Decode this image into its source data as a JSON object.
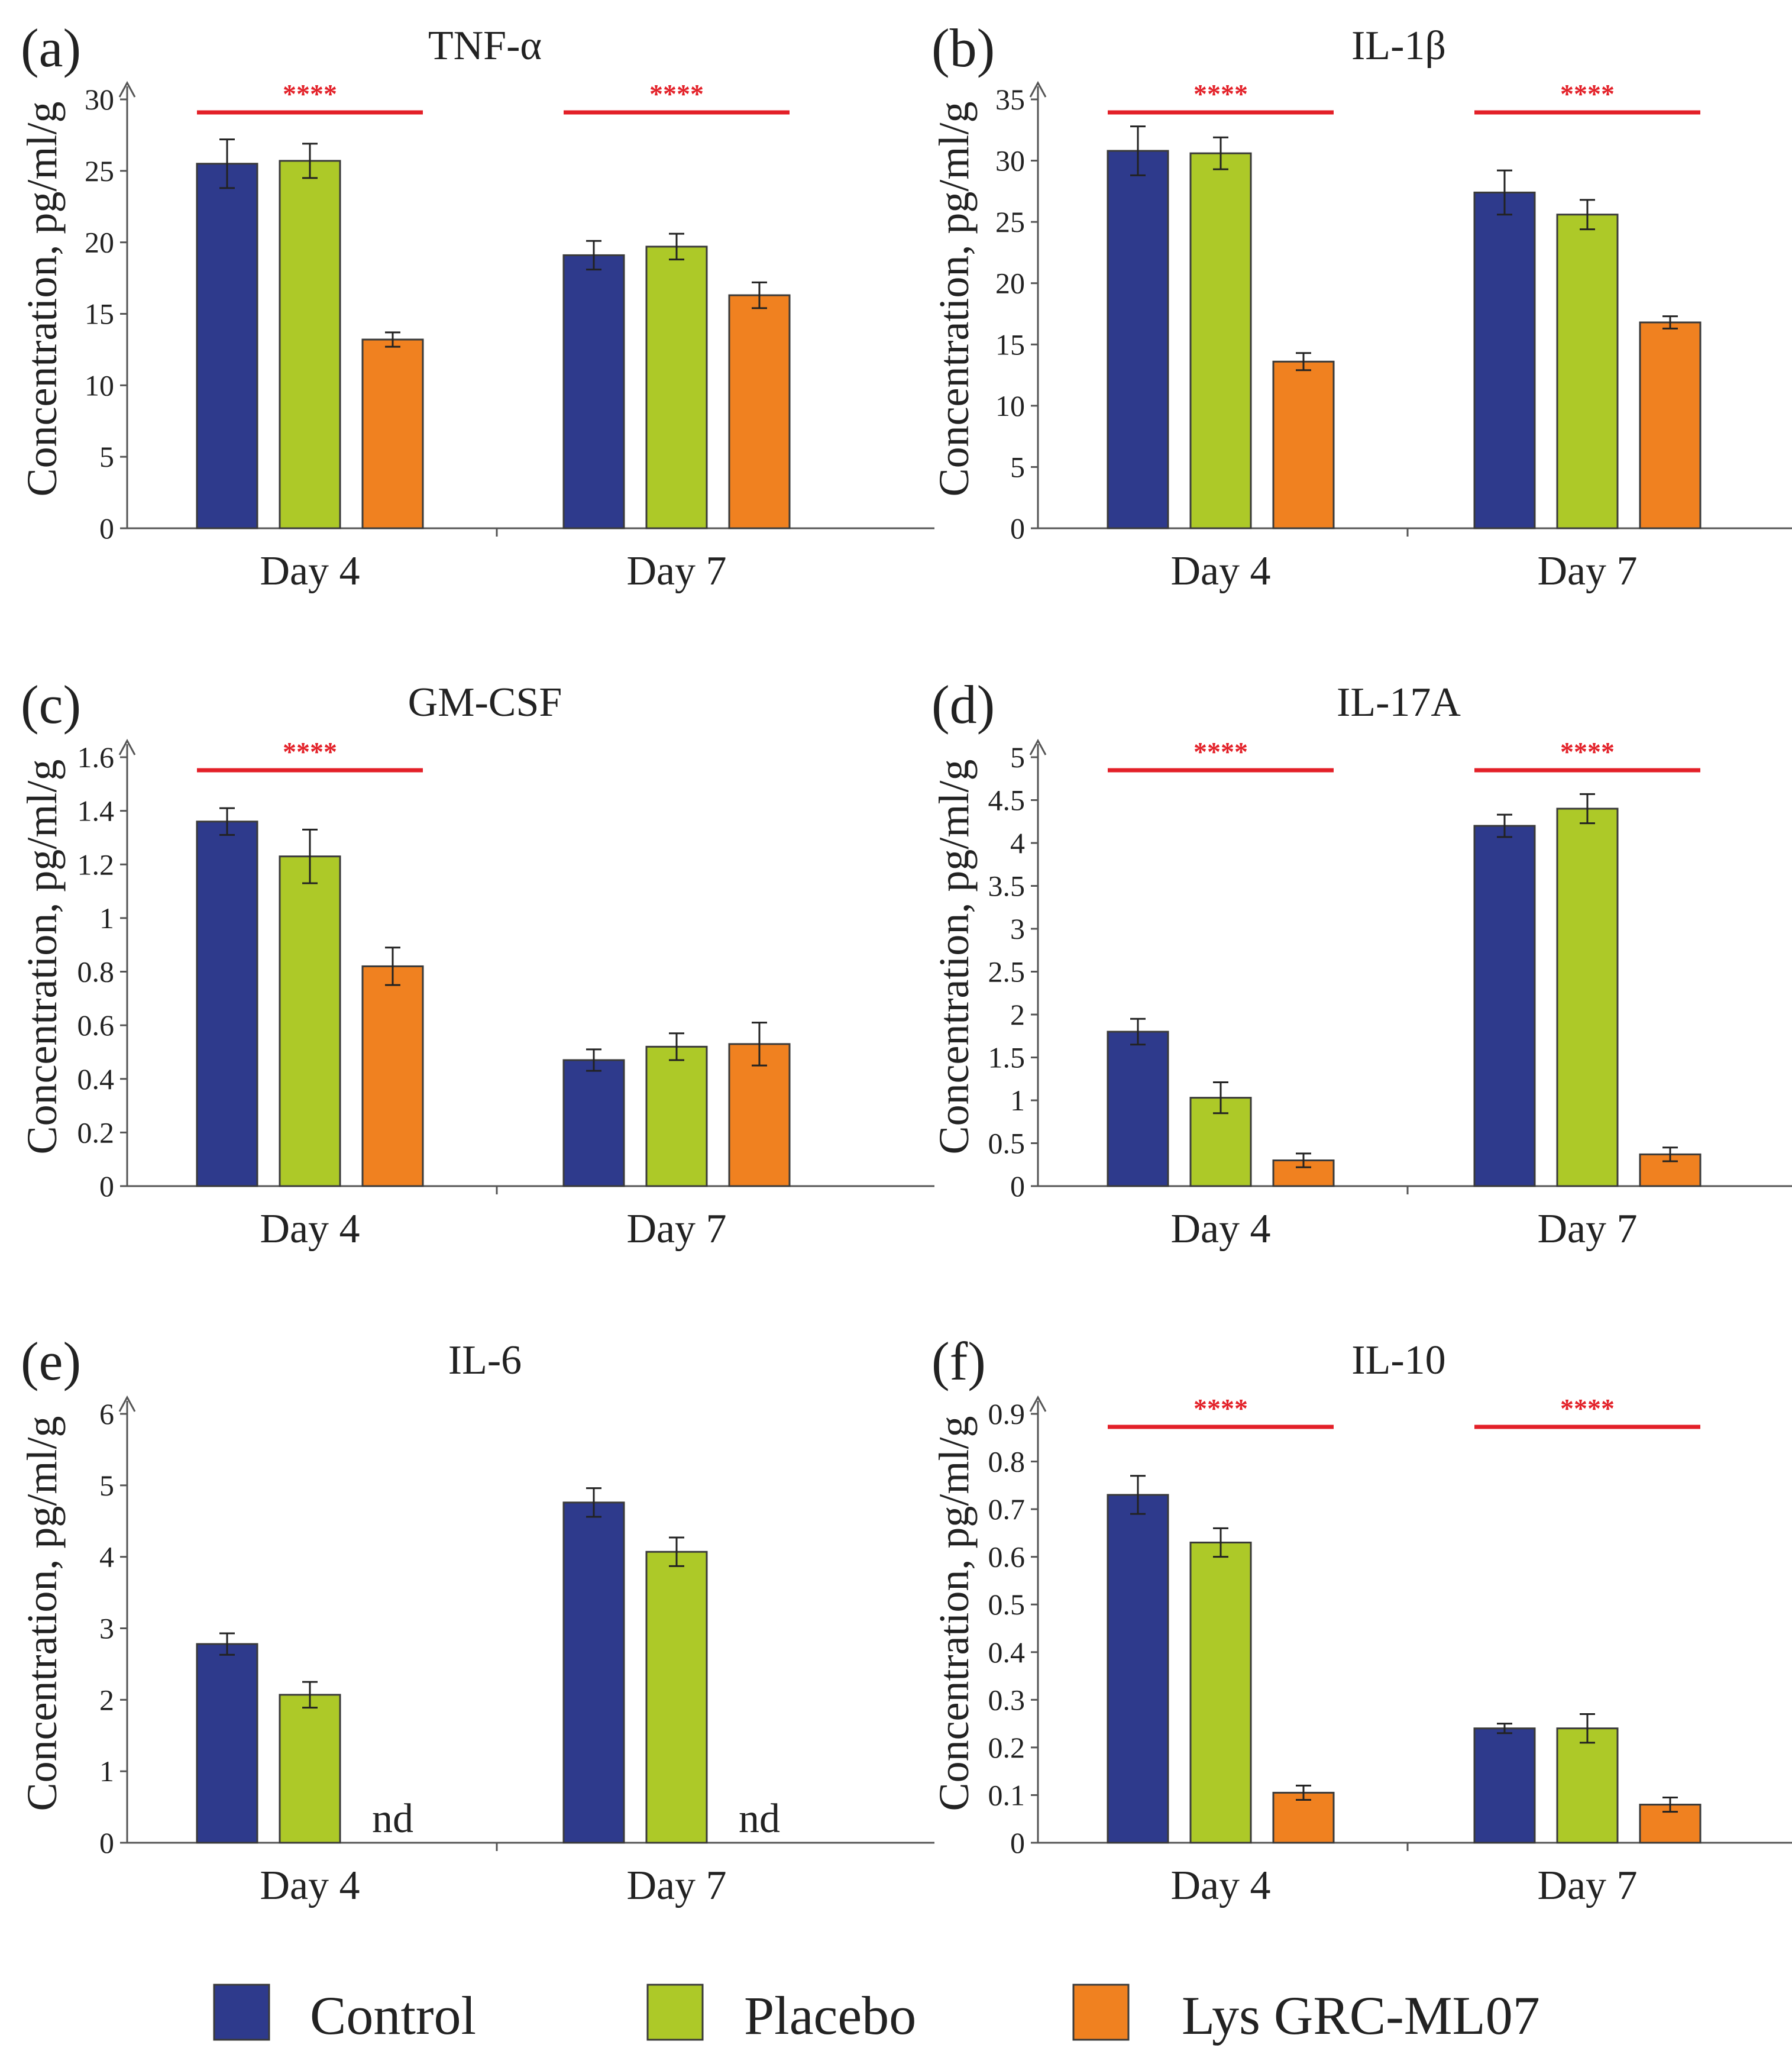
{
  "chart_data": [
    {
      "type": "bar",
      "panel_label": "(a)",
      "title": "TNF-α",
      "ylabel": "Concentration, pg/ml/g",
      "categories": [
        "Day 4",
        "Day 7"
      ],
      "ylim": [
        0,
        30
      ],
      "yticks": [
        0,
        5,
        10,
        15,
        20,
        25,
        30
      ],
      "ytick_labels": [
        "0",
        "5",
        "10",
        "15",
        "20",
        "25",
        "30"
      ],
      "series": [
        {
          "name": "Control",
          "values": [
            25.5,
            19.1
          ],
          "errors": [
            1.7,
            1.0
          ]
        },
        {
          "name": "Placebo",
          "values": [
            25.7,
            19.7
          ],
          "errors": [
            1.2,
            0.9
          ]
        },
        {
          "name": "Lys GRC-ML07",
          "values": [
            13.2,
            16.3
          ],
          "errors": [
            0.5,
            0.9
          ]
        }
      ],
      "significance": [
        {
          "group": 0,
          "label": "****"
        },
        {
          "group": 1,
          "label": "****"
        }
      ],
      "not_detected": []
    },
    {
      "type": "bar",
      "panel_label": "(b)",
      "title": "IL-1β",
      "ylabel": "Concentration, pg/ml/g",
      "categories": [
        "Day 4",
        "Day 7"
      ],
      "ylim": [
        0,
        35
      ],
      "yticks": [
        0,
        5,
        10,
        15,
        20,
        25,
        30,
        35
      ],
      "ytick_labels": [
        "0",
        "5",
        "10",
        "15",
        "20",
        "25",
        "30",
        "35"
      ],
      "series": [
        {
          "name": "Control",
          "values": [
            30.8,
            27.4
          ],
          "errors": [
            2.0,
            1.8
          ]
        },
        {
          "name": "Placebo",
          "values": [
            30.6,
            25.6
          ],
          "errors": [
            1.3,
            1.2
          ]
        },
        {
          "name": "Lys GRC-ML07",
          "values": [
            13.6,
            16.8
          ],
          "errors": [
            0.7,
            0.5
          ]
        }
      ],
      "significance": [
        {
          "group": 0,
          "label": "****"
        },
        {
          "group": 1,
          "label": "****"
        }
      ],
      "not_detected": []
    },
    {
      "type": "bar",
      "panel_label": "(c)",
      "title": "GM-CSF",
      "ylabel": "Concentration, pg/ml/g",
      "categories": [
        "Day 4",
        "Day 7"
      ],
      "ylim": [
        0,
        1.6
      ],
      "yticks": [
        0,
        0.2,
        0.4,
        0.6,
        0.8,
        1.0,
        1.2,
        1.4,
        1.6
      ],
      "ytick_labels": [
        "0",
        "0.2",
        "0.4",
        "0.6",
        "0.8",
        "1",
        "1.2",
        "1.4",
        "1.6"
      ],
      "series": [
        {
          "name": "Control",
          "values": [
            1.36,
            0.47
          ],
          "errors": [
            0.05,
            0.04
          ]
        },
        {
          "name": "Placebo",
          "values": [
            1.23,
            0.52
          ],
          "errors": [
            0.1,
            0.05
          ]
        },
        {
          "name": "Lys GRC-ML07",
          "values": [
            0.82,
            0.53
          ],
          "errors": [
            0.07,
            0.08
          ]
        }
      ],
      "significance": [
        {
          "group": 0,
          "label": "****"
        }
      ],
      "not_detected": []
    },
    {
      "type": "bar",
      "panel_label": "(d)",
      "title": "IL-17A",
      "ylabel": "Concentration, pg/ml/g",
      "categories": [
        "Day 4",
        "Day 7"
      ],
      "ylim": [
        0,
        5
      ],
      "yticks": [
        0,
        0.5,
        1,
        1.5,
        2,
        2.5,
        3,
        3.5,
        4,
        4.5,
        5
      ],
      "ytick_labels": [
        "0",
        "0.5",
        "1",
        "1.5",
        "2",
        "2.5",
        "3",
        "3.5",
        "4",
        "4.5",
        "5"
      ],
      "series": [
        {
          "name": "Control",
          "values": [
            1.8,
            4.2
          ],
          "errors": [
            0.15,
            0.13
          ]
        },
        {
          "name": "Placebo",
          "values": [
            1.03,
            4.4
          ],
          "errors": [
            0.18,
            0.17
          ]
        },
        {
          "name": "Lys GRC-ML07",
          "values": [
            0.3,
            0.37
          ],
          "errors": [
            0.08,
            0.08
          ]
        }
      ],
      "significance": [
        {
          "group": 0,
          "label": "****"
        },
        {
          "group": 1,
          "label": "****"
        }
      ],
      "not_detected": []
    },
    {
      "type": "bar",
      "panel_label": "(e)",
      "title": "IL-6",
      "ylabel": "Concentration, pg/ml/g",
      "categories": [
        "Day 4",
        "Day 7"
      ],
      "ylim": [
        0,
        6
      ],
      "yticks": [
        0,
        1,
        2,
        3,
        4,
        5,
        6
      ],
      "ytick_labels": [
        "0",
        "1",
        "2",
        "3",
        "4",
        "5",
        "6"
      ],
      "series": [
        {
          "name": "Control",
          "values": [
            2.78,
            4.76
          ],
          "errors": [
            0.15,
            0.2
          ]
        },
        {
          "name": "Placebo",
          "values": [
            2.07,
            4.07
          ],
          "errors": [
            0.18,
            0.2
          ]
        },
        {
          "name": "Lys GRC-ML07",
          "values": [
            0,
            0
          ],
          "errors": [
            0,
            0
          ]
        }
      ],
      "significance": [],
      "not_detected": [
        {
          "series": 2,
          "group": 0,
          "label": "nd"
        },
        {
          "series": 2,
          "group": 1,
          "label": "nd"
        }
      ]
    },
    {
      "type": "bar",
      "panel_label": "(f)",
      "title": "IL-10",
      "ylabel": "Concentration, pg/ml/g",
      "categories": [
        "Day 4",
        "Day 7"
      ],
      "ylim": [
        0,
        0.9
      ],
      "yticks": [
        0,
        0.1,
        0.2,
        0.3,
        0.4,
        0.5,
        0.6,
        0.7,
        0.8,
        0.9
      ],
      "ytick_labels": [
        "0",
        "0.1",
        "0.2",
        "0.3",
        "0.4",
        "0.5",
        "0.6",
        "0.7",
        "0.8",
        "0.9"
      ],
      "series": [
        {
          "name": "Control",
          "values": [
            0.73,
            0.24
          ],
          "errors": [
            0.04,
            0.01
          ]
        },
        {
          "name": "Placebo",
          "values": [
            0.63,
            0.24
          ],
          "errors": [
            0.03,
            0.03
          ]
        },
        {
          "name": "Lys GRC-ML07",
          "values": [
            0.105,
            0.08
          ],
          "errors": [
            0.015,
            0.015
          ]
        }
      ],
      "significance": [
        {
          "group": 0,
          "label": "****"
        },
        {
          "group": 1,
          "label": "****"
        }
      ],
      "not_detected": []
    }
  ],
  "legend": {
    "entries": [
      {
        "name": "Control",
        "color": "#2e3a8c"
      },
      {
        "name": "Placebo",
        "color": "#adc928"
      },
      {
        "name": "Lys GRC-ML07",
        "color": "#f08120"
      }
    ]
  },
  "colors": {
    "significance": "#e32028",
    "axis": "#555555",
    "bar_outline": "#3a3a3a"
  }
}
